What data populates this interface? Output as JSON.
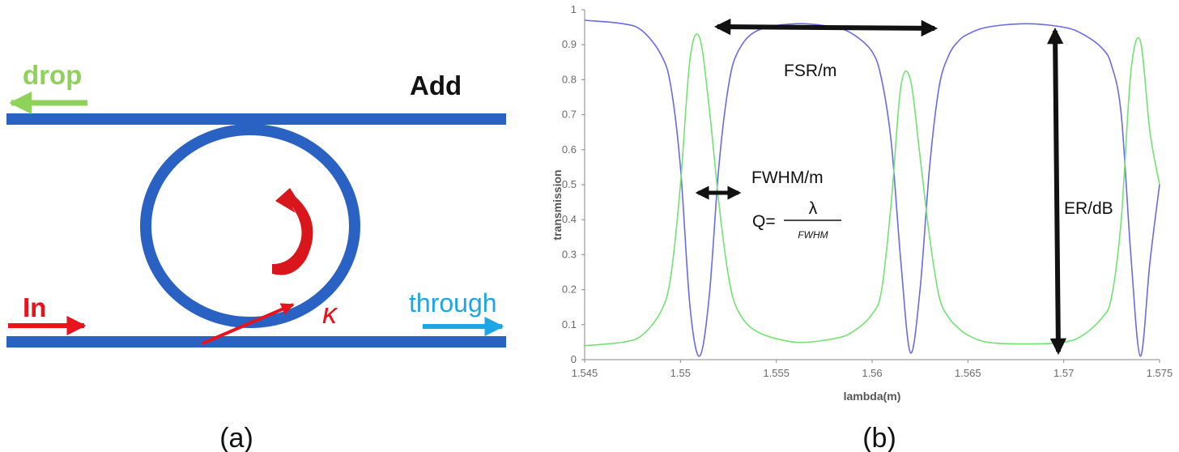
{
  "panel_a": {
    "caption": "(a)",
    "labels": {
      "drop": "drop",
      "add": "Add",
      "in": "In",
      "through": "through",
      "kappa": "κ"
    },
    "colors": {
      "waveguide": "#2a62c4",
      "drop": "#8ed25a",
      "in": "#e8131b",
      "through": "#1ea5e6",
      "circulation": "#d8161c"
    }
  },
  "panel_b": {
    "caption": "(b)",
    "annotations": {
      "fsr": "FSR/m",
      "fwhm": "FWHM/m",
      "q_prefix": "Q=",
      "q_numerator": "λ",
      "q_denominator": "FWHM",
      "er": "ER/dB"
    }
  },
  "chart_data": {
    "type": "line",
    "xlabel": "lambda(m)",
    "ylabel": "transmission",
    "xlim": [
      1.545,
      1.575
    ],
    "ylim": [
      0,
      1
    ],
    "xticks": [
      "1.545",
      "1.55",
      "1.555",
      "1.56",
      "1.565",
      "1.57",
      "1.575"
    ],
    "yticks": [
      "0",
      "0.1",
      "0.2",
      "0.3",
      "0.4",
      "0.5",
      "0.6",
      "0.7",
      "0.8",
      "0.9",
      "1"
    ],
    "grid": false,
    "series": [
      {
        "color": "#6a6ae8",
        "x": [
          1.545,
          1.547,
          1.548,
          1.549,
          1.5495,
          1.55,
          1.5505,
          1.551,
          1.5515,
          1.552,
          1.5525,
          1.553,
          1.554,
          1.556,
          1.558,
          1.559,
          1.56,
          1.5605,
          1.561,
          1.5615,
          1.562,
          1.5625,
          1.563,
          1.5635,
          1.564,
          1.5645,
          1.565,
          1.566,
          1.568,
          1.57,
          1.571,
          1.572,
          1.5725,
          1.573,
          1.5735,
          1.574,
          1.5745,
          1.575
        ],
        "y": [
          0.97,
          0.96,
          0.94,
          0.87,
          0.78,
          0.55,
          0.15,
          0.01,
          0.18,
          0.55,
          0.78,
          0.88,
          0.94,
          0.96,
          0.95,
          0.93,
          0.88,
          0.8,
          0.62,
          0.28,
          0.02,
          0.2,
          0.55,
          0.78,
          0.87,
          0.91,
          0.93,
          0.95,
          0.96,
          0.95,
          0.93,
          0.89,
          0.84,
          0.7,
          0.3,
          0.01,
          0.28,
          0.5
        ]
      },
      {
        "color": "#72e272",
        "x": [
          1.545,
          1.547,
          1.548,
          1.549,
          1.5495,
          1.55,
          1.5505,
          1.551,
          1.5515,
          1.552,
          1.5525,
          1.553,
          1.554,
          1.556,
          1.558,
          1.559,
          1.56,
          1.5605,
          1.561,
          1.5615,
          1.562,
          1.5625,
          1.563,
          1.5635,
          1.564,
          1.5645,
          1.565,
          1.566,
          1.568,
          1.57,
          1.571,
          1.572,
          1.5725,
          1.573,
          1.5735,
          1.574,
          1.5745,
          1.575
        ],
        "y": [
          0.04,
          0.05,
          0.07,
          0.14,
          0.24,
          0.5,
          0.86,
          0.92,
          0.72,
          0.45,
          0.24,
          0.14,
          0.08,
          0.05,
          0.06,
          0.08,
          0.13,
          0.2,
          0.45,
          0.78,
          0.8,
          0.58,
          0.35,
          0.18,
          0.12,
          0.09,
          0.07,
          0.05,
          0.045,
          0.05,
          0.07,
          0.12,
          0.18,
          0.4,
          0.82,
          0.91,
          0.65,
          0.5
        ]
      }
    ]
  }
}
